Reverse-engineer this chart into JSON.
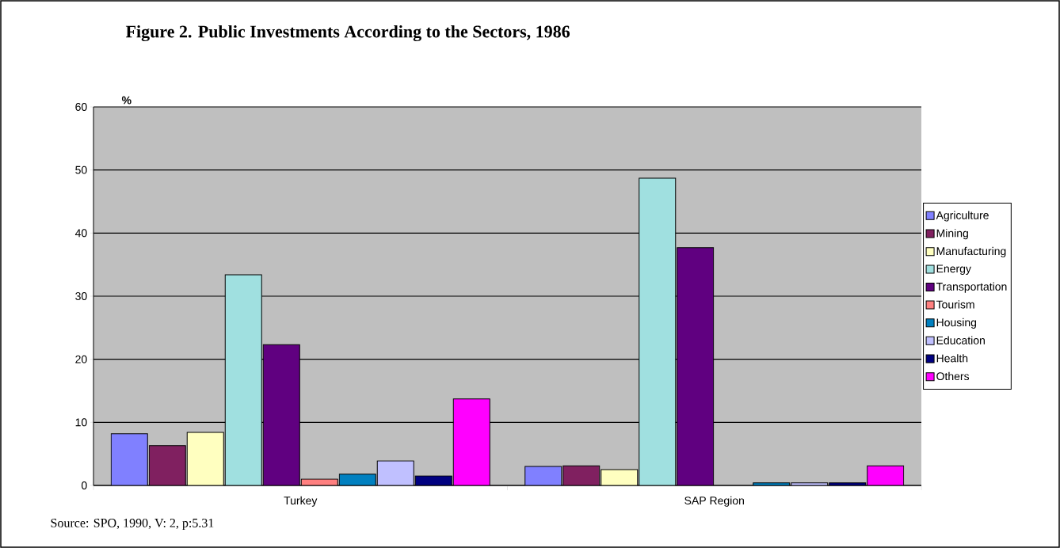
{
  "chart_data": {
    "type": "bar",
    "title": "Figure 2. Public Investments According to the Sectors, 1986",
    "ylabel": "%",
    "categories": [
      "Turkey",
      "SAP Region"
    ],
    "series": [
      {
        "name": "Agriculture",
        "color": "#8080ff",
        "values": [
          8.2,
          3.0
        ]
      },
      {
        "name": "Mining",
        "color": "#802060",
        "values": [
          6.3,
          3.1
        ]
      },
      {
        "name": "Manufacturing",
        "color": "#ffffc0",
        "values": [
          8.4,
          2.5
        ]
      },
      {
        "name": "Energy",
        "color": "#a0e0e0",
        "values": [
          33.4,
          48.7
        ]
      },
      {
        "name": "Transportation",
        "color": "#600080",
        "values": [
          22.3,
          37.7
        ]
      },
      {
        "name": "Tourism",
        "color": "#ff8080",
        "values": [
          1.0,
          null
        ]
      },
      {
        "name": "Housing",
        "color": "#0080c0",
        "values": [
          1.8,
          0.4
        ]
      },
      {
        "name": "Education",
        "color": "#c0c0ff",
        "values": [
          3.9,
          0.4
        ]
      },
      {
        "name": "Health",
        "color": "#000080",
        "values": [
          1.5,
          0.4
        ]
      },
      {
        "name": "Others",
        "color": "#ff00ff",
        "values": [
          13.7,
          3.1
        ]
      }
    ],
    "ylim": [
      0,
      60
    ],
    "yticks": [
      0,
      10,
      20,
      30,
      40,
      50,
      60
    ],
    "grid": "y",
    "legend": "right",
    "annotations": [
      "Source: SPO, 1990, V: 2, p:5.31"
    ]
  }
}
